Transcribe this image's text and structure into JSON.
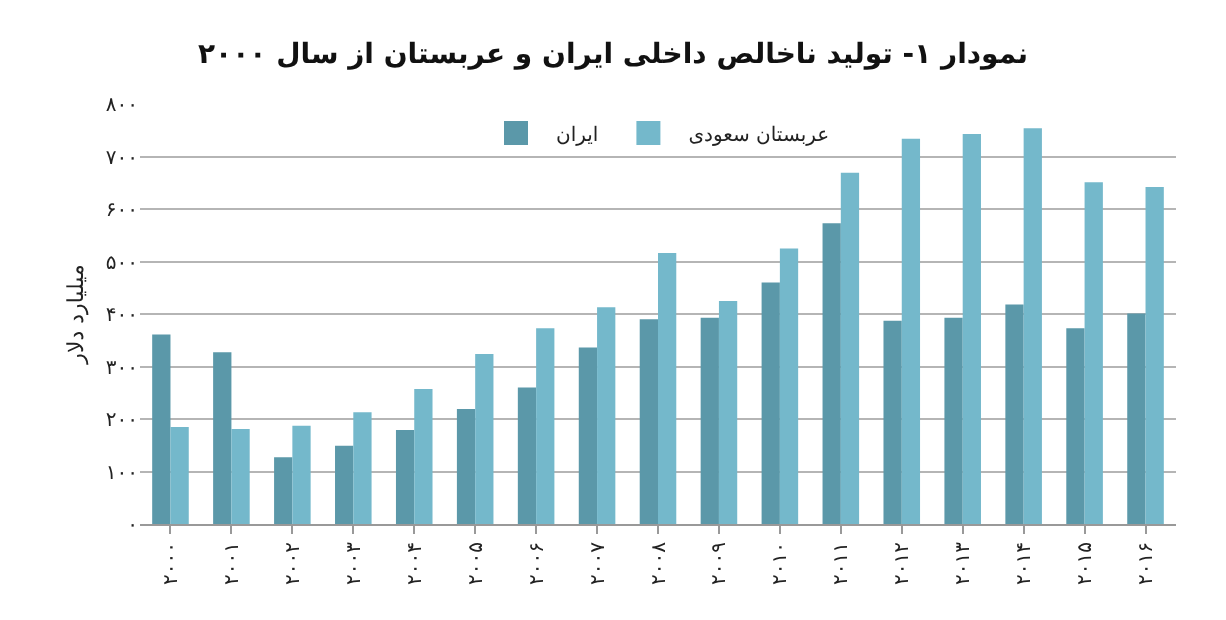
{
  "chart_data": {
    "type": "bar",
    "title": "نمودار ۱- تولید ناخالص داخلی ایران و عربستان از سال ۲۰۰۰",
    "ylabel": "میلیارد دلار",
    "categories": [
      "۲۰۰۰",
      "۲۰۰۱",
      "۲۰۰۲",
      "۲۰۰۳",
      "۲۰۰۴",
      "۲۰۰۵",
      "۲۰۰۶",
      "۲۰۰۷",
      "۲۰۰۸",
      "۲۰۰۹",
      "۲۰۱۰",
      "۲۰۱۱",
      "۲۰۱۲",
      "۲۰۱۳",
      "۲۰۱۴",
      "۲۰۱۵",
      "۲۰۱۶"
    ],
    "series": [
      {
        "name": "ایران",
        "color": "#5b98a9",
        "values": [
          361,
          327,
          127,
          149,
          179,
          219,
          260,
          336,
          390,
          393,
          460,
          573,
          387,
          393,
          418,
          373,
          401
        ]
      },
      {
        "name": "عربستان سعودی",
        "color": "#74b8cb",
        "values": [
          185,
          181,
          187,
          213,
          257,
          324,
          373,
          413,
          516,
          425,
          525,
          669,
          734,
          743,
          754,
          651,
          642
        ]
      }
    ],
    "ylim": [
      0,
      800
    ],
    "yticks": [
      {
        "value": 0,
        "label": "۰"
      },
      {
        "value": 100,
        "label": "۱۰۰"
      },
      {
        "value": 200,
        "label": "۲۰۰"
      },
      {
        "value": 300,
        "label": "۳۰۰"
      },
      {
        "value": 400,
        "label": "۴۰۰"
      },
      {
        "value": 500,
        "label": "۵۰۰"
      },
      {
        "value": 600,
        "label": "۶۰۰"
      },
      {
        "value": 700,
        "label": "۷۰۰"
      },
      {
        "value": 800,
        "label": "۸۰۰"
      }
    ],
    "grid": "y",
    "legend": "top"
  }
}
